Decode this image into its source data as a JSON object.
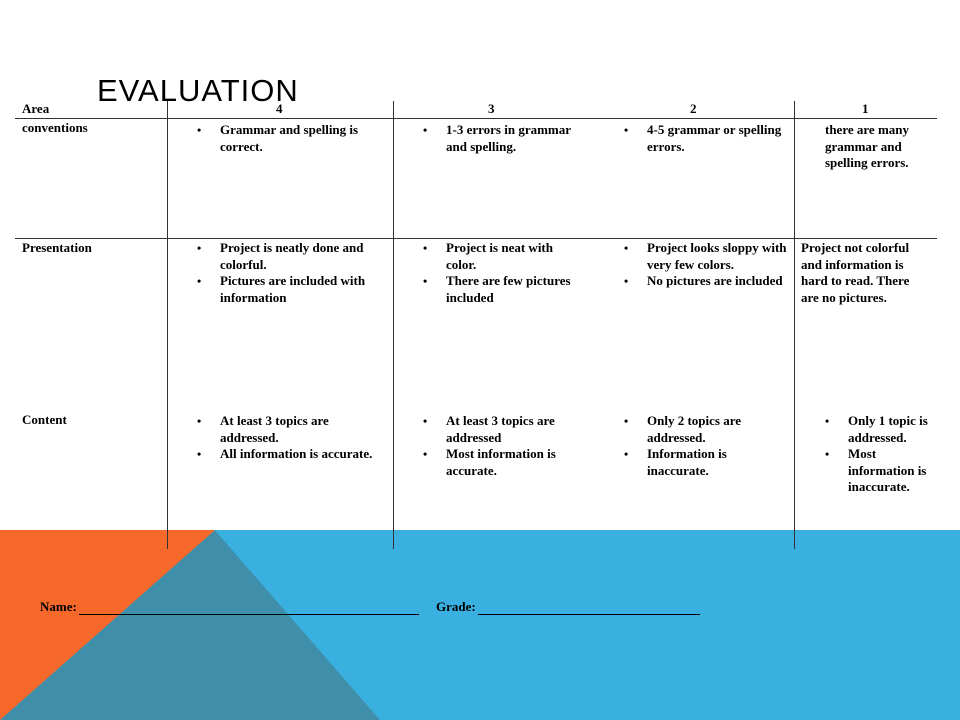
{
  "slide": {
    "title": "EVALUATION"
  },
  "rubric": {
    "header": {
      "area": "Area",
      "levels": [
        "4",
        "3",
        "2",
        "1"
      ]
    },
    "rows": [
      {
        "area": "conventions",
        "cells": [
          {
            "bullets": [
              "Grammar and spelling is correct."
            ]
          },
          {
            "bullets": [
              "1-3 errors in grammar and spelling."
            ]
          },
          {
            "bullets": [
              "4-5 grammar or spelling errors."
            ]
          },
          {
            "text": "there are many grammar and spelling errors."
          }
        ]
      },
      {
        "area": "Presentation",
        "cells": [
          {
            "bullets": [
              "Project is neatly done and colorful.",
              " Pictures are included with information"
            ]
          },
          {
            "bullets": [
              "Project is neat with color.",
              "There are few pictures included"
            ]
          },
          {
            "bullets": [
              "Project looks sloppy with very few colors.",
              "No pictures are included"
            ]
          },
          {
            "text": " Project not colorful and information is hard to read. There are no pictures."
          }
        ]
      },
      {
        "area": "Content",
        "cells": [
          {
            "bullets": [
              "At least 3 topics are addressed.",
              "All information is accurate."
            ]
          },
          {
            "bullets": [
              "At least 3 topics are addressed",
              "Most information is accurate."
            ]
          },
          {
            "bullets": [
              "Only 2 topics are addressed.",
              "Information is inaccurate."
            ]
          },
          {
            "bullets": [
              "Only 1 topic is addressed.",
              "Most information is inaccurate."
            ]
          }
        ]
      }
    ]
  },
  "footer": {
    "name_label": "Name:",
    "grade_label": "Grade:"
  },
  "colors": {
    "orange": "#f6692b",
    "blue": "#3ab0e0",
    "teal": "#3f8fab"
  }
}
